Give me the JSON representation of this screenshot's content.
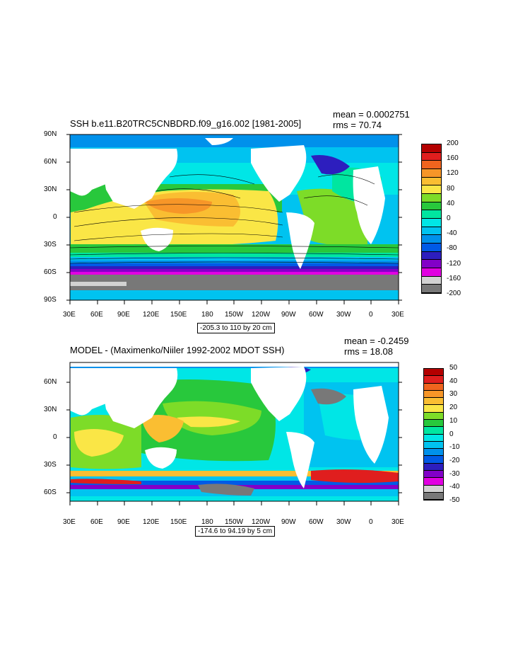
{
  "panel1": {
    "title": "SSH b.e11.B20TRC5CNBDRD.f09_g16.002 [1981-2005]",
    "mean_label": "mean = 0.0002751",
    "rms_label": "rms = 70.74",
    "lat_labels": [
      "90N",
      "60N",
      "30N",
      "0",
      "30S",
      "60S",
      "90S"
    ],
    "lon_labels": [
      "30E",
      "60E",
      "90E",
      "120E",
      "150E",
      "180",
      "150W",
      "120W",
      "90W",
      "60W",
      "30W",
      "0",
      "30E"
    ],
    "contour_info": "-205.3 to 110 by 20 cm",
    "colorbar_labels": [
      "200",
      "160",
      "120",
      "80",
      "40",
      "0",
      "-40",
      "-80",
      "-120",
      "-160",
      "-200"
    ],
    "colorbar_colors": [
      "#b40000",
      "#e01e1e",
      "#f0641e",
      "#f79628",
      "#fabe32",
      "#fae646",
      "#7ddc28",
      "#28c83c",
      "#00e6a0",
      "#00e6e6",
      "#00c3f0",
      "#0091eb",
      "#005ae6",
      "#2d1ebe",
      "#8200c8",
      "#e100e1",
      "#d2d2d2",
      "#787878"
    ]
  },
  "panel2": {
    "title": "MODEL - (Maximenko/Niiler 1992-2002 MDOT SSH)",
    "mean_label": "mean = -0.2459",
    "rms_label": "rms = 18.08",
    "lat_labels": [
      "60N",
      "30N",
      "0",
      "30S",
      "60S"
    ],
    "lon_labels": [
      "30E",
      "60E",
      "90E",
      "120E",
      "150E",
      "180",
      "150W",
      "120W",
      "90W",
      "60W",
      "30W",
      "0",
      "30E"
    ],
    "contour_info": "-174.6 to 94.19 by 5 cm",
    "colorbar_labels": [
      "50",
      "40",
      "30",
      "20",
      "10",
      "0",
      "-10",
      "-20",
      "-30",
      "-40",
      "-50"
    ],
    "colorbar_colors": [
      "#b40000",
      "#e01e1e",
      "#f0641e",
      "#f79628",
      "#fabe32",
      "#fae646",
      "#7ddc28",
      "#28c83c",
      "#00e6a0",
      "#00e6e6",
      "#00c3f0",
      "#0091eb",
      "#005ae6",
      "#2d1ebe",
      "#8200c8",
      "#e100e1",
      "#d2d2d2",
      "#787878"
    ]
  }
}
